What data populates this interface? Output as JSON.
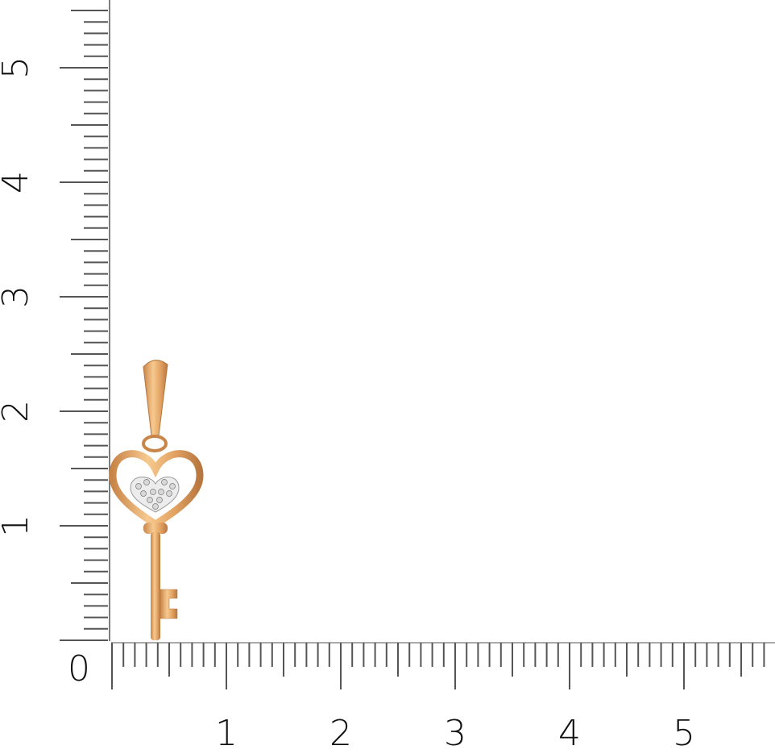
{
  "ruler": {
    "unit_labels_vertical": [
      "1",
      "2",
      "3",
      "4",
      "5"
    ],
    "unit_labels_horizontal": [
      "1",
      "2",
      "3",
      "4",
      "5"
    ],
    "origin_label": "0",
    "tick_color": "#555555"
  },
  "product": {
    "type": "key-pendant",
    "metal_color": "#e2a463",
    "stone_color": "#e8e8e8"
  }
}
